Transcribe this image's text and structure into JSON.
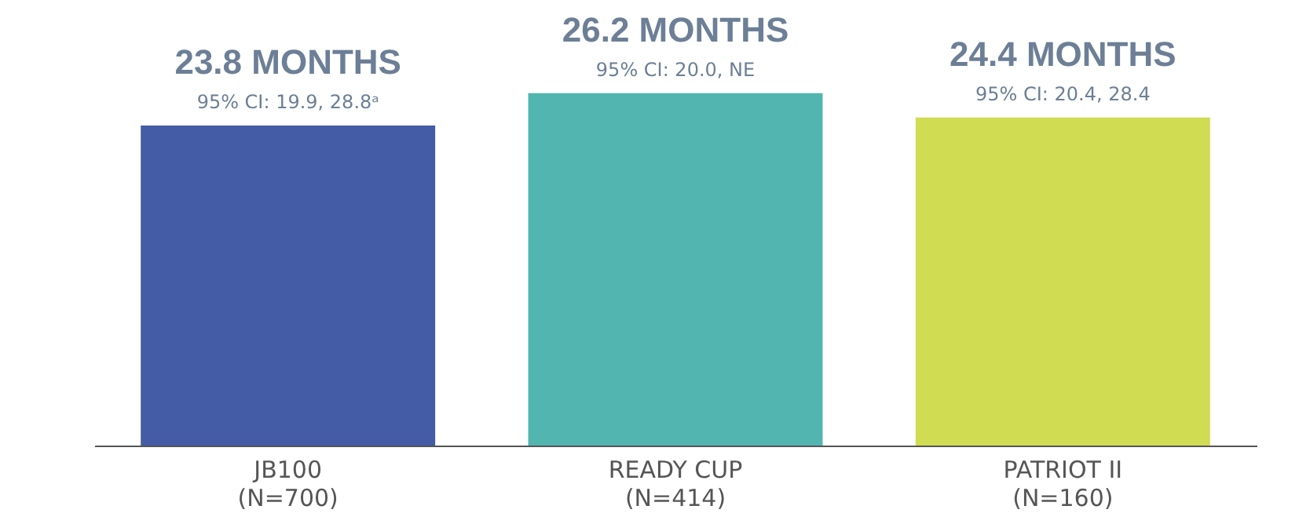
{
  "chart_data": {
    "type": "bar",
    "categories": [
      "JB100\n(N=700)",
      "READY CUP\n(N=414)",
      "PATRIOT II\n(N=160)"
    ],
    "values": [
      23.8,
      26.2,
      24.4
    ],
    "colors": [
      "#435ca5",
      "#52b5b0",
      "#d0dc52"
    ],
    "value_labels": [
      "23.8 MONTHS",
      "26.2 MONTHS",
      "24.4 MONTHS"
    ],
    "annotations": [
      {
        "text": "95% CI: 19.9, 28.8ᵃ",
        "x": "JB100\n(N=700)",
        "y": 23.8
      },
      {
        "text": "95% CI: 20.0, NE",
        "x": "READY CUP\n(N=414)",
        "y": 26.2
      },
      {
        "text": "95% CI: 20.4, 28.4",
        "x": "PATRIOT II\n(N=160)",
        "y": 24.4
      }
    ],
    "tick_labels": "x"
  }
}
